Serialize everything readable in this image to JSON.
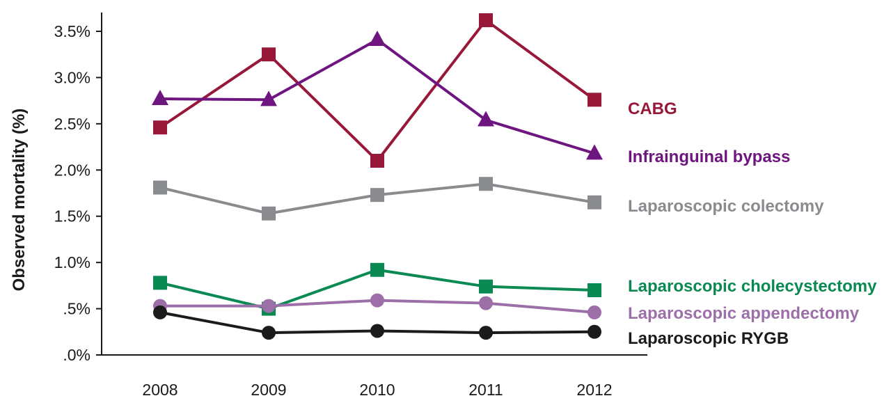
{
  "chart_data": {
    "type": "line",
    "title": "",
    "xlabel": "",
    "ylabel": "Observed mortality (%)",
    "categories": [
      "2008",
      "2009",
      "2010",
      "2011",
      "2012"
    ],
    "ylim": [
      0,
      3.75
    ],
    "yticks": [
      {
        "value": 0,
        "label": ".0%"
      },
      {
        "value": 0.5,
        "label": ".5%"
      },
      {
        "value": 1.0,
        "label": "1.0%"
      },
      {
        "value": 1.5,
        "label": "1.5%"
      },
      {
        "value": 2.0,
        "label": "2.0%"
      },
      {
        "value": 2.5,
        "label": "2.5%"
      },
      {
        "value": 3.0,
        "label": "3.0%"
      },
      {
        "value": 3.5,
        "label": "3.5%"
      }
    ],
    "grid": false,
    "legend": "direct labels at right end of each series",
    "series": [
      {
        "name": "CABG",
        "color": "#98183a",
        "marker": "square",
        "values": [
          2.46,
          3.25,
          2.1,
          3.62,
          2.76
        ]
      },
      {
        "name": "Infrainguinal bypass",
        "color": "#6e1580",
        "marker": "triangle",
        "values": [
          2.77,
          2.76,
          3.41,
          2.54,
          2.18
        ]
      },
      {
        "name": "Laparoscopic colectomy",
        "color": "#8a8b8e",
        "marker": "square",
        "values": [
          1.81,
          1.53,
          1.73,
          1.85,
          1.65
        ]
      },
      {
        "name": "Laparoscopic cholecystectomy",
        "color": "#0a8a52",
        "marker": "square",
        "values": [
          0.78,
          0.5,
          0.92,
          0.74,
          0.7
        ]
      },
      {
        "name": "Laparoscopic appendectomy",
        "color": "#9c6fa8",
        "marker": "circle",
        "values": [
          0.53,
          0.53,
          0.59,
          0.56,
          0.46
        ]
      },
      {
        "name": "Laparoscopic RYGB",
        "color": "#1b1b1b",
        "marker": "circle",
        "values": [
          0.46,
          0.24,
          0.26,
          0.24,
          0.25
        ]
      }
    ]
  }
}
